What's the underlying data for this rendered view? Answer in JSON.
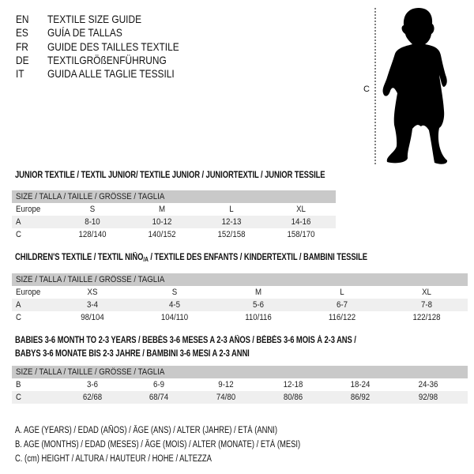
{
  "languages": [
    {
      "code": "EN",
      "text": "TEXTILE SIZE GUIDE"
    },
    {
      "code": "ES",
      "text": "GUÍA DE TALLAS"
    },
    {
      "code": "FR",
      "text": "GUIDE DES TAILLES TEXTILE"
    },
    {
      "code": "DE",
      "text": "TEXTILGRÖßENFÜHRUNG"
    },
    {
      "code": "IT",
      "text": "GUIDA ALLE TAGLIE TESSILI"
    }
  ],
  "figure": {
    "measure_label": "C"
  },
  "junior": {
    "title": "JUNIOR TEXTILE / TEXTIL JUNIOR/ TEXTILE JUNIOR / JUNIORTEXTIL / JUNIOR TESSILE",
    "header": "SIZE / TALLA / TAILLE / GRÖSSE / TAGLIA",
    "rows": [
      {
        "label": "Europe",
        "values": [
          "S",
          "M",
          "L",
          "XL"
        ]
      },
      {
        "label": "A",
        "values": [
          "8-10",
          "10-12",
          "12-13",
          "14-16"
        ]
      },
      {
        "label": "C",
        "values": [
          "128/140",
          "140/152",
          "152/158",
          "158/170"
        ]
      }
    ]
  },
  "children": {
    "title": "CHILDREN'S TEXTILE / TEXTIL NIÑO",
    "title_sub": "/A",
    "title_rest": " / TEXTILE DES ENFANTS / KINDERTEXTIL / BAMBINI TESSILE",
    "header": "SIZE / TALLA / TAILLE / GRÖSSE / TAGLIA",
    "rows": [
      {
        "label": "Europe",
        "values": [
          "XS",
          "S",
          "M",
          "L",
          "XL"
        ]
      },
      {
        "label": "A",
        "values": [
          "3-4",
          "4-5",
          "5-6",
          "6-7",
          "7-8"
        ]
      },
      {
        "label": "C",
        "values": [
          "98/104",
          "104/110",
          "110/116",
          "116/122",
          "122/128"
        ]
      }
    ]
  },
  "babies": {
    "title_line1": "BABIES 3-6 MONTH TO 2-3 YEARS / BEBÉS 3-6 MESES A 2-3 AÑOS / BÉBÉS 3-6 MOIS À 2-3 ANS /",
    "title_line2": "BABYS 3-6 MONATE BIS 2-3 JAHRE / BAMBINI 3-6 MESI A 2-3 ANNI",
    "header": "SIZE / TALLA / TAILLE / GRÖSSE / TAGLIA",
    "rows": [
      {
        "label": "B",
        "values": [
          "3-6",
          "6-9",
          "9-12",
          "12-18",
          "18-24",
          "24-36"
        ]
      },
      {
        "label": "C",
        "values": [
          "62/68",
          "68/74",
          "74/80",
          "80/86",
          "86/92",
          "92/98"
        ]
      }
    ]
  },
  "legend": [
    "A. AGE (YEARS) / EDAD (AÑOS) / ÂGE (ANS) / ALTER (JAHRE) / ETÀ (ANNI)",
    "B. AGE (MONTHS) / EDAD (MESES) / ÂGE (MOIS) / ALTER (MONATE) / ETÀ (MESI)",
    "C. (cm) HEIGHT / ALTURA / HAUTEUR / HÖHE / ALTEZZA"
  ]
}
